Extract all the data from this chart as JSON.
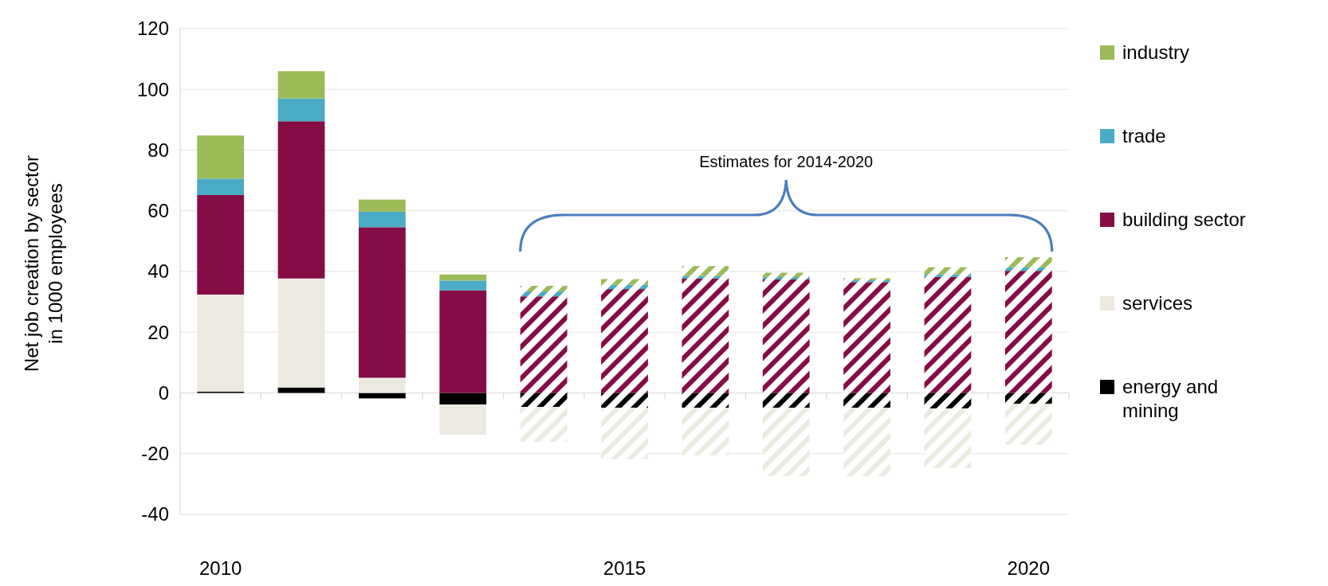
{
  "chart_data": {
    "type": "bar",
    "stacked": true,
    "ylabel": "Net job creation by sector\nin 1000 employees",
    "categories": [
      "2010",
      null,
      null,
      null,
      null,
      "2015",
      null,
      null,
      null,
      null,
      "2020"
    ],
    "ylim": [
      -40,
      120
    ],
    "yticks": [
      -40,
      -20,
      0,
      20,
      40,
      60,
      80,
      100,
      120
    ],
    "grid": "y",
    "legend": "right",
    "annotations": [
      "Estimates for 2014-2020"
    ],
    "series": [
      {
        "name": "energy and mining",
        "color": "#000000",
        "values": [
          0.4,
          1.8,
          -1.8,
          -3.8,
          null,
          null,
          null,
          null,
          null,
          null,
          null
        ]
      },
      {
        "name": "services",
        "color": "#eceae0",
        "values": [
          32,
          35.9,
          5,
          -10,
          null,
          null,
          null,
          null,
          null,
          null,
          null
        ]
      },
      {
        "name": "building sector",
        "color": "#860c45",
        "values": [
          32.8,
          51.8,
          49.6,
          33.8,
          null,
          null,
          null,
          null,
          null,
          null,
          null
        ]
      },
      {
        "name": "trade",
        "color": "#4aabc6",
        "values": [
          5.4,
          7.5,
          5.1,
          3.2,
          null,
          null,
          null,
          null,
          null,
          null,
          null
        ]
      },
      {
        "name": "industry",
        "color": "#9bbb59",
        "values": [
          14.2,
          9,
          4,
          2,
          null,
          null,
          null,
          null,
          null,
          null,
          null
        ]
      },
      {
        "color": "#000000",
        "values": [
          null,
          null,
          null,
          null,
          -4.6,
          -4.9,
          -4.9,
          -4.9,
          -4.9,
          -5.1,
          -3.6
        ]
      },
      {
        "color": "#eceae0",
        "values": [
          null,
          null,
          null,
          null,
          -11.5,
          -16.9,
          -15.7,
          -22.5,
          -22.5,
          -19.7,
          -13.5
        ]
      },
      {
        "color": "#860c45",
        "values": [
          null,
          null,
          null,
          null,
          31.8,
          34.2,
          37.7,
          37.4,
          36.5,
          38.2,
          40.2
        ]
      },
      {
        "color": "#4aabc6",
        "values": [
          null,
          null,
          null,
          null,
          1.6,
          1.4,
          0.8,
          0.8,
          0.6,
          0.9,
          1.2
        ]
      },
      {
        "color": "#9bbb59",
        "values": [
          null,
          null,
          null,
          null,
          1.9,
          1.9,
          3.3,
          1.4,
          0.7,
          2.3,
          3.3
        ]
      }
    ]
  }
}
